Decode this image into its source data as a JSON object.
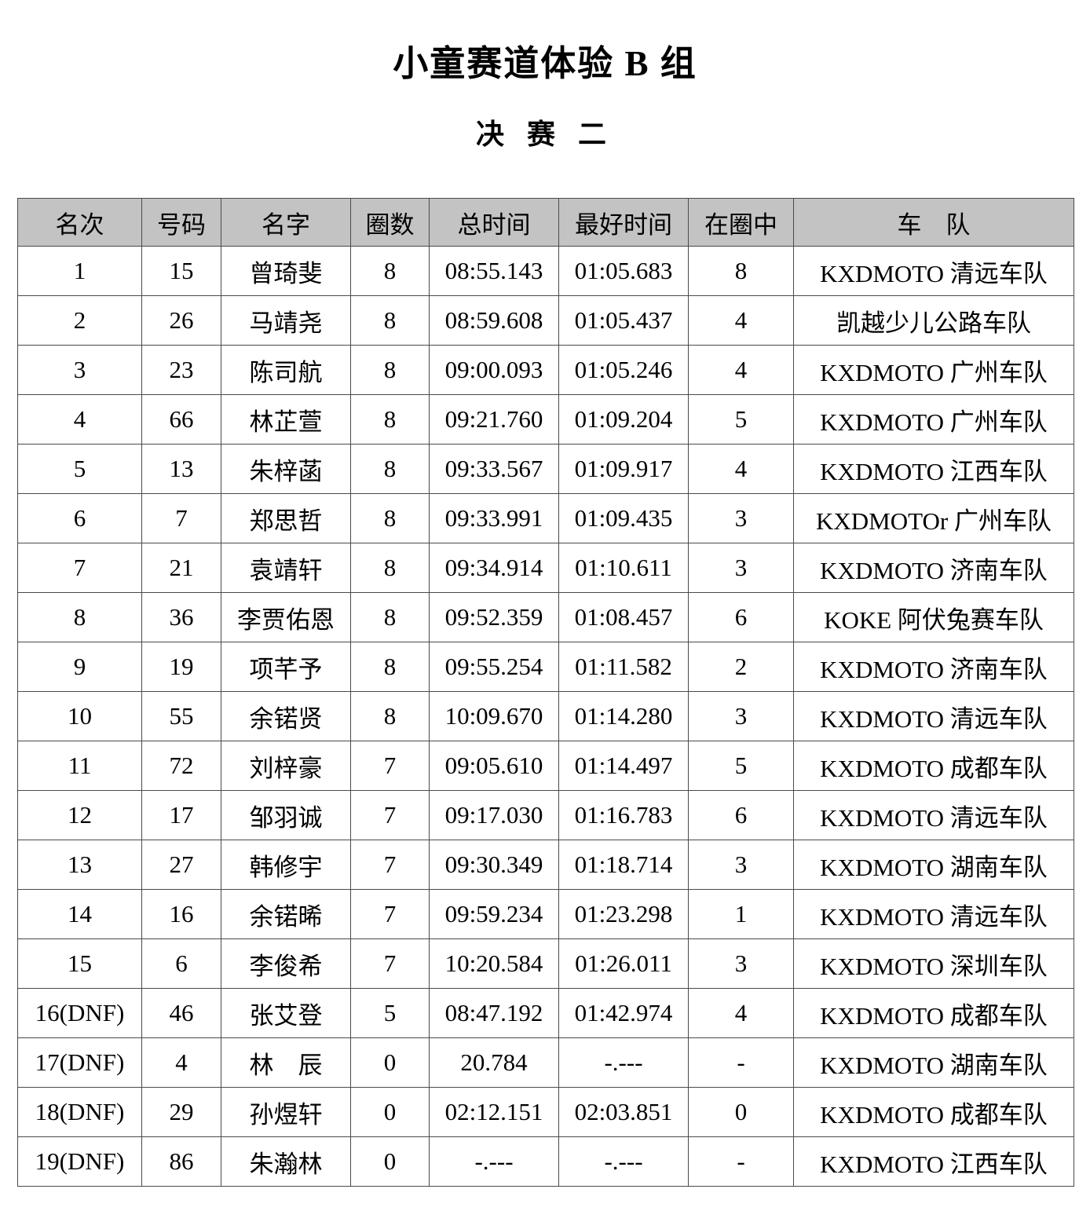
{
  "title": "小童赛道体验 B 组",
  "subtitle": "决 赛 二",
  "colors": {
    "header_bg": "#c3c3c3",
    "border": "#4a4a4a",
    "text": "#000000",
    "page_bg": "#ffffff"
  },
  "chart_data": {
    "type": "table",
    "title": "小童赛道体验 B 组 决赛二",
    "columns": [
      "名次",
      "号码",
      "名字",
      "圈数",
      "总时间",
      "最好时间",
      "在圈中",
      "车　队"
    ],
    "rows": [
      [
        "1",
        "15",
        "曾琦斐",
        "8",
        "08:55.143",
        "01:05.683",
        "8",
        "KXDMOTO 清远车队"
      ],
      [
        "2",
        "26",
        "马靖尧",
        "8",
        "08:59.608",
        "01:05.437",
        "4",
        "凯越少儿公路车队"
      ],
      [
        "3",
        "23",
        "陈司航",
        "8",
        "09:00.093",
        "01:05.246",
        "4",
        "KXDMOTO 广州车队"
      ],
      [
        "4",
        "66",
        "林芷萱",
        "8",
        "09:21.760",
        "01:09.204",
        "5",
        "KXDMOTO 广州车队"
      ],
      [
        "5",
        "13",
        "朱梓菡",
        "8",
        "09:33.567",
        "01:09.917",
        "4",
        "KXDMOTO 江西车队"
      ],
      [
        "6",
        "7",
        "郑思哲",
        "8",
        "09:33.991",
        "01:09.435",
        "3",
        "KXDMOTOr 广州车队"
      ],
      [
        "7",
        "21",
        "袁靖轩",
        "8",
        "09:34.914",
        "01:10.611",
        "3",
        "KXDMOTO 济南车队"
      ],
      [
        "8",
        "36",
        "李贾佑恩",
        "8",
        "09:52.359",
        "01:08.457",
        "6",
        "KOKE 阿伏兔赛车队"
      ],
      [
        "9",
        "19",
        "项芊予",
        "8",
        "09:55.254",
        "01:11.582",
        "2",
        "KXDMOTO 济南车队"
      ],
      [
        "10",
        "55",
        "余锘贤",
        "8",
        "10:09.670",
        "01:14.280",
        "3",
        "KXDMOTO 清远车队"
      ],
      [
        "11",
        "72",
        "刘梓豪",
        "7",
        "09:05.610",
        "01:14.497",
        "5",
        "KXDMOTO 成都车队"
      ],
      [
        "12",
        "17",
        "邹羽诚",
        "7",
        "09:17.030",
        "01:16.783",
        "6",
        "KXDMOTO 清远车队"
      ],
      [
        "13",
        "27",
        "韩修宇",
        "7",
        "09:30.349",
        "01:18.714",
        "3",
        "KXDMOTO 湖南车队"
      ],
      [
        "14",
        "16",
        "余锘晞",
        "7",
        "09:59.234",
        "01:23.298",
        "1",
        "KXDMOTO 清远车队"
      ],
      [
        "15",
        "6",
        "李俊希",
        "7",
        "10:20.584",
        "01:26.011",
        "3",
        "KXDMOTO 深圳车队"
      ],
      [
        "16(DNF)",
        "46",
        "张艾登",
        "5",
        "08:47.192",
        "01:42.974",
        "4",
        "KXDMOTO 成都车队"
      ],
      [
        "17(DNF)",
        "4",
        "林　辰",
        "0",
        "20.784",
        "-.---",
        "-",
        "KXDMOTO 湖南车队"
      ],
      [
        "18(DNF)",
        "29",
        "孙煜轩",
        "0",
        "02:12.151",
        "02:03.851",
        "0",
        "KXDMOTO 成都车队"
      ],
      [
        "19(DNF)",
        "86",
        "朱瀚林",
        "0",
        "-.---",
        "-.---",
        "-",
        "KXDMOTO 江西车队"
      ]
    ]
  }
}
